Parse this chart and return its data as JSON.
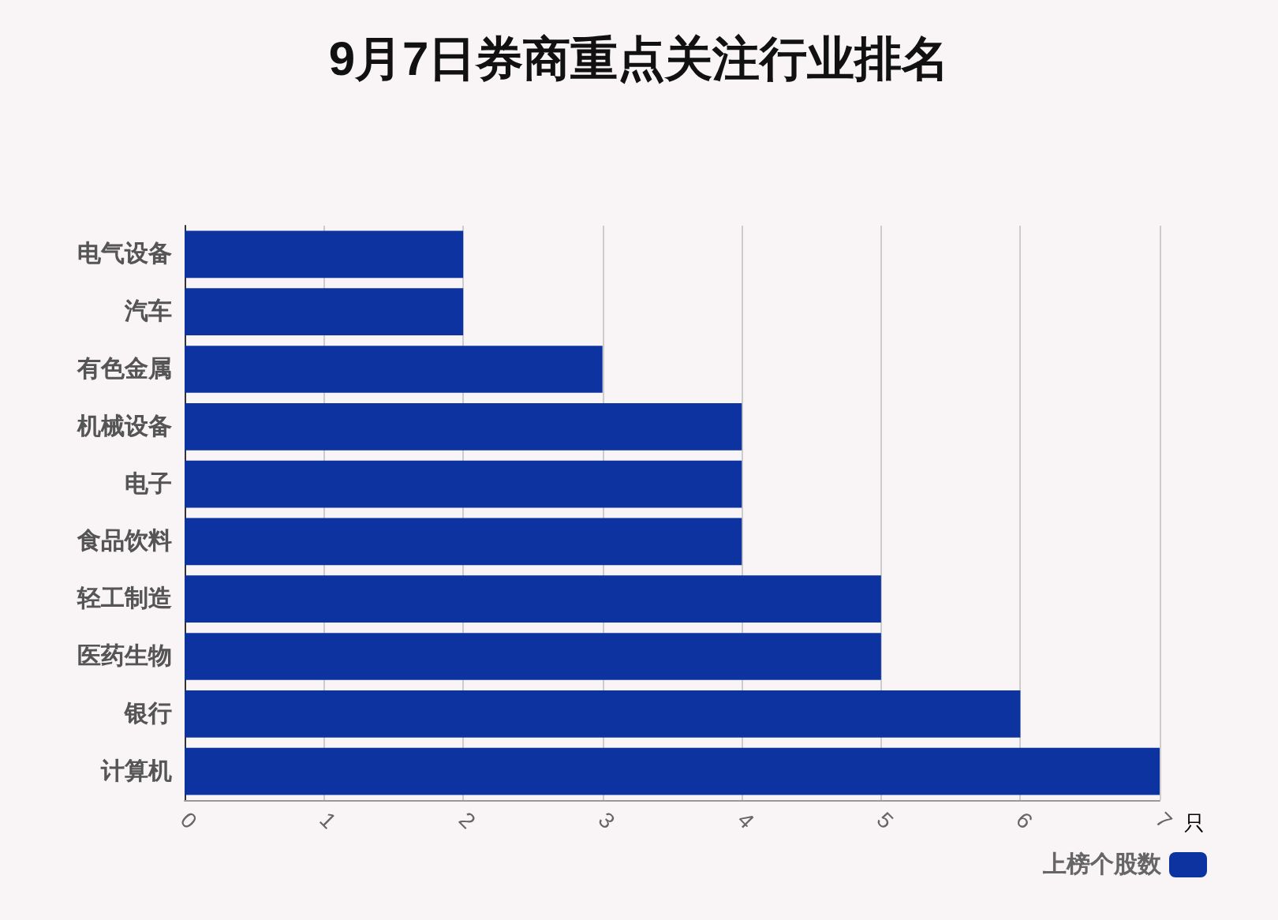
{
  "chart_data": {
    "type": "bar",
    "orientation": "horizontal",
    "title": "9月7日券商重点关注行业排名",
    "xlabel": "只",
    "categories": [
      "电气设备",
      "汽车",
      "有色金属",
      "机械设备",
      "电子",
      "食品饮料",
      "轻工制造",
      "医药生物",
      "银行",
      "计算机"
    ],
    "series": [
      {
        "name": "上榜个股数",
        "color": "#0d33a0",
        "values": [
          2,
          2,
          3,
          4,
          4,
          4,
          5,
          5,
          6,
          7
        ]
      }
    ],
    "xlim": [
      0,
      7
    ],
    "xticks": [
      0,
      1,
      2,
      3,
      4,
      5,
      6,
      7
    ],
    "grid": "x",
    "legend": "bottom right"
  }
}
